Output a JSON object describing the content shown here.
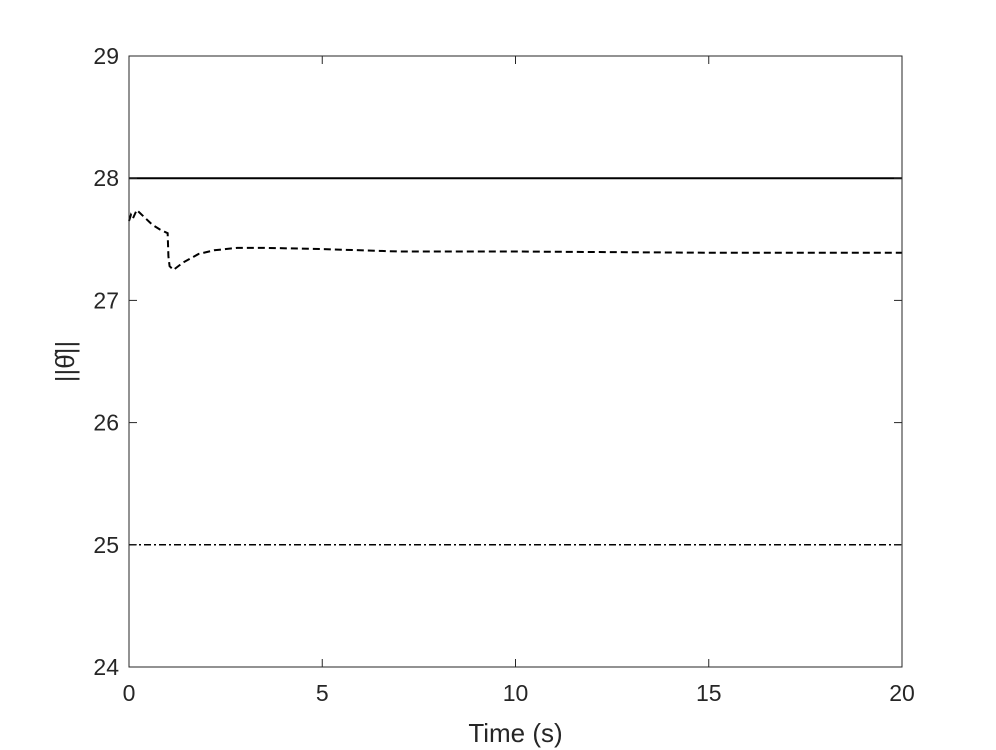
{
  "chart_data": {
    "type": "line",
    "xlabel": "Time (s)",
    "ylabel": "||θ̂||",
    "xlim": [
      0,
      20
    ],
    "ylim": [
      24,
      29
    ],
    "xticks": [
      0,
      5,
      10,
      15,
      20
    ],
    "yticks": [
      24,
      25,
      26,
      27,
      28,
      29
    ],
    "grid": false,
    "box": true,
    "series": [
      {
        "line_style": "solid",
        "color": "#000000",
        "points": [
          [
            0,
            28
          ],
          [
            20,
            28
          ]
        ]
      },
      {
        "line_style": "dashed",
        "color": "#000000",
        "points": [
          [
            0,
            27.65
          ],
          [
            0.05,
            27.7
          ],
          [
            0.1,
            27.67
          ],
          [
            0.2,
            27.74
          ],
          [
            0.4,
            27.68
          ],
          [
            0.6,
            27.62
          ],
          [
            0.8,
            27.58
          ],
          [
            1.0,
            27.55
          ],
          [
            1.02,
            27.36
          ],
          [
            1.05,
            27.28
          ],
          [
            1.15,
            27.25
          ],
          [
            1.4,
            27.31
          ],
          [
            1.8,
            27.38
          ],
          [
            2.2,
            27.41
          ],
          [
            2.8,
            27.43
          ],
          [
            3.5,
            27.43
          ],
          [
            5,
            27.42
          ],
          [
            7,
            27.4
          ],
          [
            10,
            27.4
          ],
          [
            15,
            27.39
          ],
          [
            20,
            27.39
          ]
        ]
      },
      {
        "line_style": "dash-dot",
        "color": "#000000",
        "points": [
          [
            0,
            25
          ],
          [
            20,
            25
          ]
        ]
      }
    ]
  }
}
